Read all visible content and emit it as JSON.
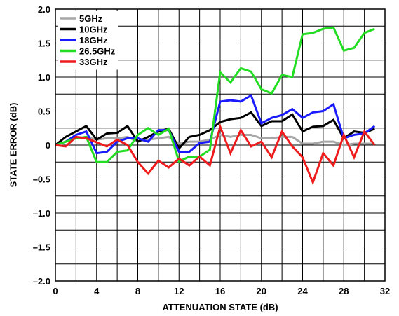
{
  "chart_data": {
    "type": "line",
    "title": "",
    "xlabel": "ATTENUATION STATE (dB)",
    "ylabel": "STATE ERROR (dB)",
    "xlim": [
      0,
      32
    ],
    "ylim": [
      -2.0,
      2.0
    ],
    "xticks": [
      "0",
      "4",
      "8",
      "12",
      "16",
      "20",
      "24",
      "28",
      "32"
    ],
    "yticks": [
      "2.0",
      "1.5",
      "1.0",
      "0.5",
      "0",
      "–0.5",
      "–1.0",
      "–1.5",
      "–2.0"
    ],
    "grid": true,
    "legend_position": "top-left",
    "x": [
      0,
      1,
      2,
      3,
      4,
      5,
      6,
      7,
      8,
      9,
      10,
      11,
      12,
      13,
      14,
      15,
      16,
      17,
      18,
      19,
      20,
      21,
      22,
      23,
      24,
      25,
      26,
      27,
      28,
      29,
      30,
      31
    ],
    "series": [
      {
        "name": "5GHz",
        "color": "#a6a6a6",
        "values": [
          0.0,
          0.05,
          0.1,
          0.12,
          0.08,
          0.1,
          0.1,
          0.12,
          0.05,
          0.08,
          0.1,
          0.12,
          0.02,
          0.05,
          0.05,
          0.08,
          0.15,
          0.12,
          0.15,
          0.15,
          0.1,
          0.1,
          0.12,
          0.12,
          0.02,
          0.02,
          0.05,
          0.05,
          0.0,
          0.02,
          0.02,
          0.02
        ]
      },
      {
        "name": "10GHz",
        "color": "#000000",
        "values": [
          0.0,
          0.12,
          0.2,
          0.28,
          0.08,
          0.17,
          0.18,
          0.28,
          0.05,
          0.12,
          0.2,
          0.24,
          -0.05,
          0.12,
          0.15,
          0.22,
          0.34,
          0.38,
          0.4,
          0.48,
          0.28,
          0.35,
          0.35,
          0.45,
          0.2,
          0.27,
          0.28,
          0.37,
          0.1,
          0.2,
          0.18,
          0.24
        ]
      },
      {
        "name": "18GHz",
        "color": "#1a1aff",
        "values": [
          0.0,
          0.05,
          0.15,
          0.2,
          -0.12,
          -0.1,
          0.05,
          0.1,
          0.1,
          0.05,
          0.22,
          0.22,
          -0.1,
          -0.1,
          0.03,
          0.05,
          0.64,
          0.66,
          0.64,
          0.73,
          0.32,
          0.4,
          0.44,
          0.53,
          0.4,
          0.48,
          0.5,
          0.6,
          0.1,
          0.15,
          0.17,
          0.28
        ]
      },
      {
        "name": "26.5GHz",
        "color": "#22dd22",
        "values": [
          0.0,
          0.05,
          0.1,
          0.12,
          -0.25,
          -0.25,
          -0.1,
          -0.08,
          0.15,
          0.25,
          0.15,
          0.24,
          -0.24,
          -0.17,
          -0.17,
          -0.07,
          1.07,
          0.92,
          1.13,
          1.08,
          0.82,
          0.76,
          1.03,
          1.0,
          1.63,
          1.65,
          1.71,
          1.73,
          1.39,
          1.43,
          1.65,
          1.71
        ]
      },
      {
        "name": "33GHz",
        "color": "#ee1c1c",
        "values": [
          0.0,
          -0.02,
          0.12,
          0.1,
          0.04,
          -0.02,
          0.08,
          0.0,
          -0.25,
          -0.42,
          -0.23,
          -0.33,
          -0.2,
          -0.3,
          -0.17,
          -0.3,
          0.27,
          -0.12,
          0.22,
          -0.02,
          0.05,
          -0.18,
          0.2,
          -0.02,
          -0.18,
          -0.55,
          -0.12,
          -0.3,
          0.15,
          -0.18,
          0.2,
          0.0
        ]
      }
    ]
  }
}
